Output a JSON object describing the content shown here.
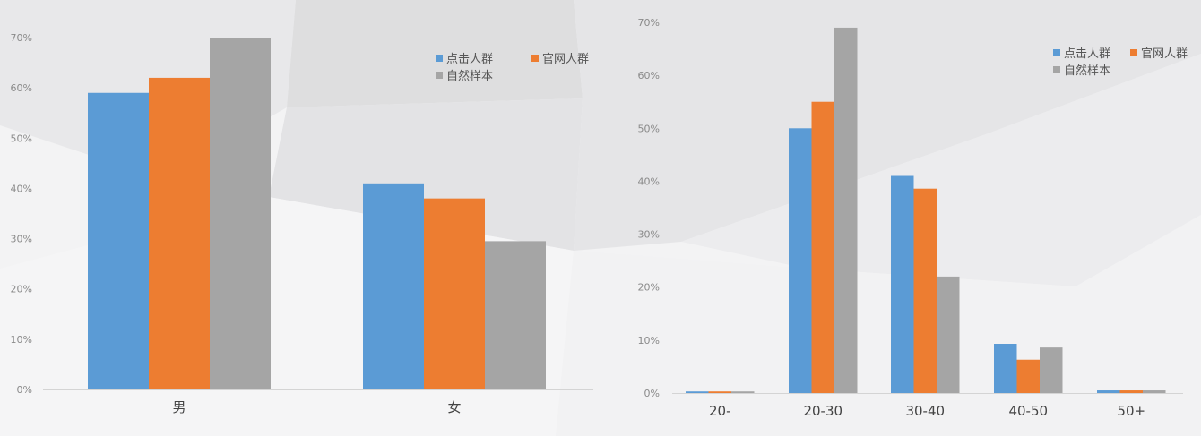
{
  "colors": {
    "click": "#5b9bd5",
    "official": "#ed7d31",
    "natural": "#a5a5a5"
  },
  "chart_data": [
    {
      "type": "bar",
      "categories": [
        "男",
        "女"
      ],
      "series": [
        {
          "name": "点击人群",
          "values": [
            59,
            41
          ]
        },
        {
          "name": "官网人群",
          "values": [
            62,
            38
          ]
        },
        {
          "name": "自然样本",
          "values": [
            70,
            29.5
          ]
        }
      ],
      "ylim": [
        0,
        70
      ],
      "yticks": [
        "0%",
        "10%",
        "20%",
        "30%",
        "40%",
        "50%",
        "60%",
        "70%"
      ],
      "title": "",
      "xlabel": "",
      "ylabel": "",
      "grid": false,
      "legend": "top-right"
    },
    {
      "type": "bar",
      "categories": [
        "20-",
        "20-30",
        "30-40",
        "40-50",
        "50+"
      ],
      "series": [
        {
          "name": "点击人群",
          "values": [
            0.3,
            50,
            41,
            9.3,
            0.5
          ]
        },
        {
          "name": "官网人群",
          "values": [
            0.3,
            55,
            38.6,
            6.3,
            0.5
          ]
        },
        {
          "name": "自然样本",
          "values": [
            0.3,
            69,
            22,
            8.6,
            0.5
          ]
        }
      ],
      "ylim": [
        0,
        70
      ],
      "yticks": [
        "0%",
        "10%",
        "20%",
        "30%",
        "40%",
        "50%",
        "60%",
        "70%"
      ],
      "title": "",
      "xlabel": "",
      "ylabel": "",
      "grid": false,
      "legend": "top-right"
    }
  ]
}
